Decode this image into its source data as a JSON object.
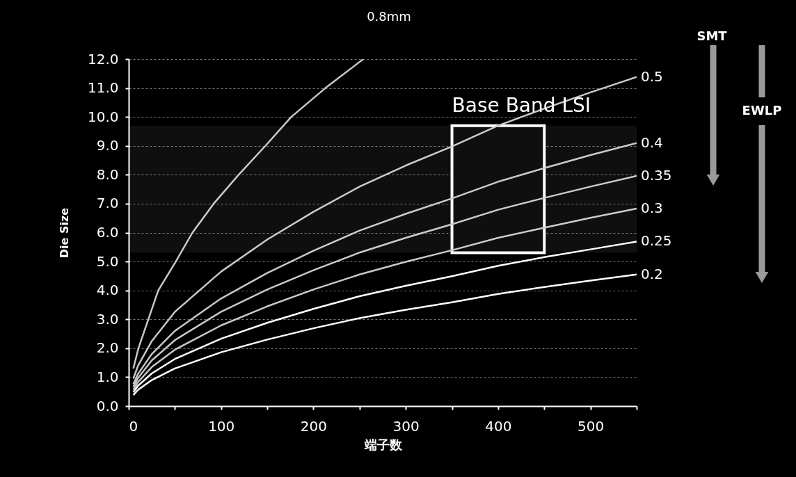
{
  "chart_data": {
    "type": "line",
    "xlabel": "端子数",
    "ylabel": "Die Size",
    "xlim": [
      0,
      550
    ],
    "ylim": [
      0,
      12
    ],
    "xticks": [
      0,
      {
        "value": 50,
        "label": null
      },
      100,
      {
        "value": 150,
        "label": null
      },
      200,
      {
        "value": 250,
        "label": null
      },
      300,
      {
        "value": 350,
        "label": null
      },
      400,
      {
        "value": 450,
        "label": null
      },
      500,
      {
        "value": 550,
        "label": null
      }
    ],
    "yticks": [
      {
        "value": 0,
        "label": "0.0"
      },
      {
        "value": 1,
        "label": "1.0"
      },
      {
        "value": 2,
        "label": "2.0"
      },
      {
        "value": 3,
        "label": "3.0"
      },
      {
        "value": 4,
        "label": "4.0"
      },
      {
        "value": 5,
        "label": "5.0"
      },
      {
        "value": 6,
        "label": "6.0"
      },
      {
        "value": 7,
        "label": "7.0"
      },
      {
        "value": 8,
        "label": "8.0"
      },
      {
        "value": 9,
        "label": "9.0"
      },
      {
        "value": 10,
        "label": "10.0"
      },
      {
        "value": 11,
        "label": "11.0"
      },
      {
        "value": 12,
        "label": "12.0"
      }
    ],
    "grid": "y",
    "legend": false,
    "marker": "none",
    "line_style": "solid",
    "series": [
      {
        "name": "0.8mm",
        "color": "#c8c8c8",
        "x": [
          5,
          10.5,
          32,
          51,
          69,
          92,
          119,
          148,
          176,
          213,
          254
        ],
        "values": [
          1.3,
          2.0,
          4.0,
          5.0,
          6.0,
          7.0,
          8.0,
          9.0,
          10.0,
          11.0,
          12.0
        ]
      },
      {
        "name": "0.5",
        "color": "#c8c8c8",
        "x": [
          5,
          10,
          25,
          50,
          100,
          150,
          200,
          250,
          300,
          350,
          400,
          450,
          500,
          550
        ],
        "values": [
          0.95,
          1.39,
          2.25,
          3.26,
          4.65,
          5.76,
          6.72,
          7.59,
          8.32,
          8.98,
          9.7,
          10.29,
          10.85,
          11.38
        ]
      },
      {
        "name": "0.4",
        "color": "#c8c8c8",
        "x": [
          5,
          10,
          25,
          50,
          100,
          150,
          200,
          250,
          300,
          350,
          400,
          450,
          500,
          550
        ],
        "values": [
          0.76,
          1.11,
          1.8,
          2.6,
          3.72,
          4.6,
          5.37,
          6.07,
          6.65,
          7.18,
          7.76,
          8.23,
          8.68,
          9.1
        ]
      },
      {
        "name": "0.35",
        "color": "#c8c8c8",
        "x": [
          5,
          10,
          25,
          50,
          100,
          150,
          200,
          250,
          300,
          350,
          400,
          450,
          500,
          550
        ],
        "values": [
          0.67,
          0.97,
          1.58,
          2.28,
          3.26,
          4.03,
          4.7,
          5.31,
          5.82,
          6.29,
          6.79,
          7.2,
          7.59,
          7.96
        ]
      },
      {
        "name": "0.3",
        "color": "#c8c8c8",
        "x": [
          5,
          10,
          25,
          50,
          100,
          150,
          200,
          250,
          300,
          350,
          400,
          450,
          500,
          550
        ],
        "values": [
          0.57,
          0.83,
          1.35,
          1.95,
          2.79,
          3.45,
          4.03,
          4.55,
          4.99,
          5.39,
          5.82,
          6.17,
          6.51,
          6.83
        ]
      },
      {
        "name": "0.25",
        "color": "#ffffff",
        "x": [
          5,
          10,
          25,
          50,
          100,
          150,
          200,
          250,
          300,
          350,
          400,
          450,
          500,
          550
        ],
        "values": [
          0.48,
          0.7,
          1.13,
          1.63,
          2.33,
          2.88,
          3.36,
          3.8,
          4.16,
          4.49,
          4.85,
          5.15,
          5.42,
          5.69
        ]
      },
      {
        "name": "0.2",
        "color": "#ffffff",
        "x": [
          5,
          10,
          25,
          50,
          100,
          150,
          200,
          250,
          300,
          350,
          400,
          450,
          500,
          550
        ],
        "values": [
          0.38,
          0.56,
          0.9,
          1.3,
          1.86,
          2.3,
          2.69,
          3.04,
          3.33,
          3.59,
          3.88,
          4.12,
          4.34,
          4.55
        ]
      }
    ],
    "bands": [
      {
        "axis": "x",
        "from": 350,
        "to": 450,
        "label": "Base Band LSI",
        "color": "#ffffff"
      },
      {
        "axis": "y",
        "from": 5.3,
        "to": 9.7,
        "color": "#ffffff"
      }
    ],
    "annotations": [
      "SMT",
      "EWLP"
    ]
  }
}
